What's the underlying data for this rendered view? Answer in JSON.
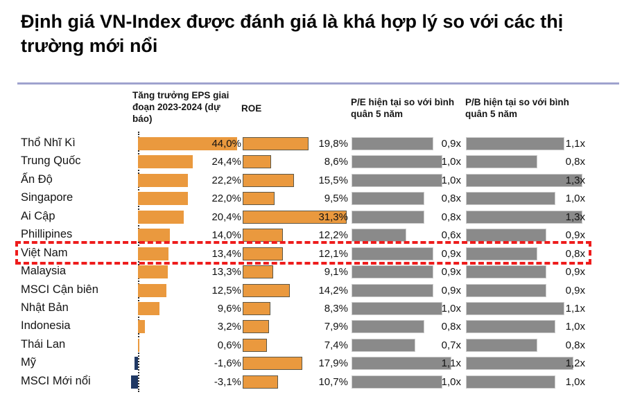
{
  "title": "Định giá VN-Index được đánh giá là khá hợp lý so với các thị trường mới nổi",
  "chart_data": {
    "type": "bar",
    "orientation": "horizontal",
    "grid": false,
    "legend": false,
    "highlight_row": "Việt Nam",
    "highlight_style": "red dashed rectangle",
    "columns": [
      {
        "key": "eps",
        "header": "Tăng trưởng EPS giai đoạn 2023-2024 (dự báo)",
        "unit": "%",
        "axis_max": 44.0,
        "positive_color": "#ea993e",
        "negative_color": "#1f3864",
        "zero_axis": "dotted"
      },
      {
        "key": "roe",
        "header": "ROE",
        "unit": "%",
        "axis_max": 31.3,
        "positive_color": "#ea993e"
      },
      {
        "key": "pe",
        "header": "P/E hiện tại so với bình quân 5 năm",
        "unit": "x",
        "axis_max": 1.1,
        "positive_color": "#8a8a8a"
      },
      {
        "key": "pb",
        "header": "P/B hiện tại so với bình quân 5 năm",
        "unit": "x",
        "axis_max": 1.3,
        "positive_color": "#8a8a8a"
      }
    ],
    "rows": [
      {
        "country": "Thổ Nhĩ Kì",
        "eps": 44.0,
        "eps_label": "44,0%",
        "roe": 19.8,
        "roe_label": "19,8%",
        "pe": 0.9,
        "pe_label": "0,9x",
        "pb": 1.1,
        "pb_label": "1,1x"
      },
      {
        "country": "Trung Quốc",
        "eps": 24.4,
        "eps_label": "24,4%",
        "roe": 8.6,
        "roe_label": "8,6%",
        "pe": 1.0,
        "pe_label": "1,0x",
        "pb": 0.8,
        "pb_label": "0,8x"
      },
      {
        "country": "Ấn Độ",
        "eps": 22.2,
        "eps_label": "22,2%",
        "roe": 15.5,
        "roe_label": "15,5%",
        "pe": 1.0,
        "pe_label": "1,0x",
        "pb": 1.3,
        "pb_label": "1,3x"
      },
      {
        "country": "Singapore",
        "eps": 22.0,
        "eps_label": "22,0%",
        "roe": 9.5,
        "roe_label": "9,5%",
        "pe": 0.8,
        "pe_label": "0,8x",
        "pb": 1.0,
        "pb_label": "1,0x"
      },
      {
        "country": "Ai Cập",
        "eps": 20.4,
        "eps_label": "20,4%",
        "roe": 31.3,
        "roe_label": "31,3%",
        "pe": 0.8,
        "pe_label": "0,8x",
        "pb": 1.3,
        "pb_label": "1,3x"
      },
      {
        "country": "Phillipines",
        "eps": 14.0,
        "eps_label": "14,0%",
        "roe": 12.2,
        "roe_label": "12,2%",
        "pe": 0.6,
        "pe_label": "0,6x",
        "pb": 0.9,
        "pb_label": "0,9x"
      },
      {
        "country": "Việt Nam",
        "eps": 13.4,
        "eps_label": "13,4%",
        "roe": 12.1,
        "roe_label": "12,1%",
        "pe": 0.9,
        "pe_label": "0,9x",
        "pb": 0.8,
        "pb_label": "0,8x"
      },
      {
        "country": "Malaysia",
        "eps": 13.3,
        "eps_label": "13,3%",
        "roe": 9.1,
        "roe_label": "9,1%",
        "pe": 0.9,
        "pe_label": "0,9x",
        "pb": 0.9,
        "pb_label": "0,9x"
      },
      {
        "country": "MSCI Cận biên",
        "eps": 12.5,
        "eps_label": "12,5%",
        "roe": 14.2,
        "roe_label": "14,2%",
        "pe": 0.9,
        "pe_label": "0,9x",
        "pb": 0.9,
        "pb_label": "0,9x"
      },
      {
        "country": "Nhật Bản",
        "eps": 9.6,
        "eps_label": "9,6%",
        "roe": 8.3,
        "roe_label": "8,3%",
        "pe": 1.0,
        "pe_label": "1,0x",
        "pb": 1.1,
        "pb_label": "1,1x"
      },
      {
        "country": "Indonesia",
        "eps": 3.2,
        "eps_label": "3,2%",
        "roe": 7.9,
        "roe_label": "7,9%",
        "pe": 0.8,
        "pe_label": "0,8x",
        "pb": 1.0,
        "pb_label": "1,0x"
      },
      {
        "country": "Thái Lan",
        "eps": 0.6,
        "eps_label": "0,6%",
        "roe": 7.4,
        "roe_label": "7,4%",
        "pe": 0.7,
        "pe_label": "0,7x",
        "pb": 0.8,
        "pb_label": "0,8x"
      },
      {
        "country": "Mỹ",
        "eps": -1.6,
        "eps_label": "-1,6%",
        "roe": 17.9,
        "roe_label": "17,9%",
        "pe": 1.1,
        "pe_label": "1,1x",
        "pb": 1.2,
        "pb_label": "1,2x"
      },
      {
        "country": "MSCI Mới nổi",
        "eps": -3.1,
        "eps_label": "-3,1%",
        "roe": 10.7,
        "roe_label": "10,7%",
        "pe": 1.0,
        "pe_label": "1,0x",
        "pb": 1.0,
        "pb_label": "1,0x"
      }
    ]
  },
  "colors": {
    "bar_orange": "#ea993e",
    "bar_navy": "#1f3864",
    "bar_gray": "#8a8a8a",
    "highlight_red": "#ee1c1c",
    "title_rule": "#9fa2ce",
    "text": "#121212"
  }
}
